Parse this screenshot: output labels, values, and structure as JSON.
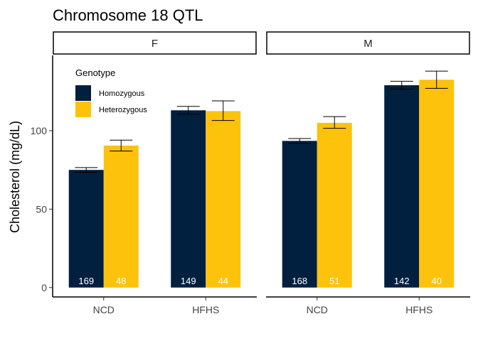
{
  "chart_data": {
    "type": "bar",
    "title": "Chromosome 18 QTL",
    "xlabel": "",
    "ylabel": "Cholesterol (mg/dL)",
    "ylim": [
      -6,
      148
    ],
    "yticks": [
      0,
      50,
      100
    ],
    "grid": false,
    "legend": {
      "title": "Genotype",
      "placement": "top-left",
      "entries": [
        "Homozygous",
        "Heterozygous"
      ]
    },
    "categories": [
      "NCD",
      "HFHS"
    ],
    "series_colors": [
      "#011F3F",
      "#FDC20B"
    ],
    "panels": [
      {
        "label": "F",
        "series": [
          {
            "name": "Homozygous",
            "values": [
              75,
              113
            ],
            "err_low": [
              73.5,
              110.5
            ],
            "err_high": [
              76.5,
              115.5
            ],
            "n": [
              "169",
              "149"
            ]
          },
          {
            "name": "Heterozygous",
            "values": [
              90.5,
              112.5
            ],
            "err_low": [
              87,
              106.5
            ],
            "err_high": [
              94,
              119
            ],
            "n": [
              "48",
              "44"
            ]
          }
        ]
      },
      {
        "label": "M",
        "series": [
          {
            "name": "Homozygous",
            "values": [
              93.5,
              129
            ],
            "err_low": [
              92,
              126.5
            ],
            "err_high": [
              95,
              131.5
            ],
            "n": [
              "168",
              "142"
            ]
          },
          {
            "name": "Heterozygous",
            "values": [
              105,
              132.5
            ],
            "err_low": [
              101.5,
              127
            ],
            "err_high": [
              109,
              138
            ],
            "n": [
              "51",
              "40"
            ]
          }
        ]
      }
    ]
  }
}
